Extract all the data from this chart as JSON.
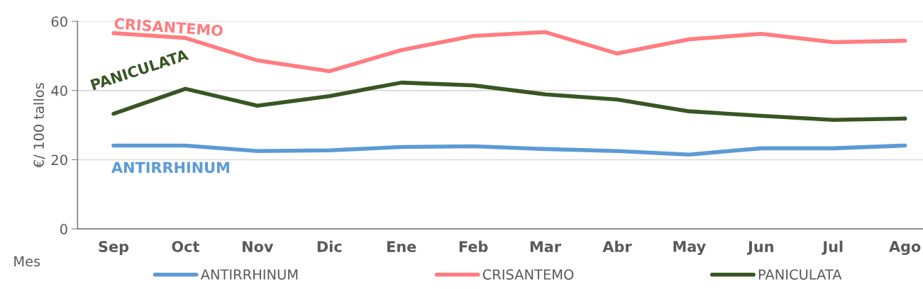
{
  "chart_data": {
    "type": "line",
    "xlabel": "Mes",
    "ylabel": "€/ 100 tallos",
    "categories": [
      "Sep",
      "Oct",
      "Nov",
      "Dic",
      "Ene",
      "Feb",
      "Mar",
      "Abr",
      "May",
      "Jun",
      "Jul",
      "Ago"
    ],
    "series": [
      {
        "name": "ANTIRRHINUM",
        "color": "#5b9bd5",
        "values": [
          24.1,
          24.1,
          22.5,
          22.7,
          23.7,
          23.9,
          23.1,
          22.5,
          21.5,
          23.3,
          23.3,
          24.1
        ]
      },
      {
        "name": "CRISANTEMO",
        "color": "#ff7c80",
        "values": [
          56.6,
          55.2,
          48.7,
          45.6,
          51.7,
          55.8,
          56.9,
          50.7,
          54.8,
          56.4,
          54.0,
          54.4
        ]
      },
      {
        "name": "PANICULATA",
        "color": "#375623",
        "values": [
          33.3,
          40.5,
          35.6,
          38.4,
          42.3,
          41.5,
          38.9,
          37.4,
          34.0,
          32.7,
          31.5,
          31.9
        ]
      }
    ],
    "annotations": [
      "ANTIRRHINUM",
      "CRISANTEMO",
      "PANICULATA"
    ],
    "ylim": [
      0,
      60
    ],
    "yticks": [
      0,
      20,
      40,
      60
    ],
    "grid": "y",
    "legend": "bottom",
    "marker": "none",
    "line_style": "solid"
  }
}
